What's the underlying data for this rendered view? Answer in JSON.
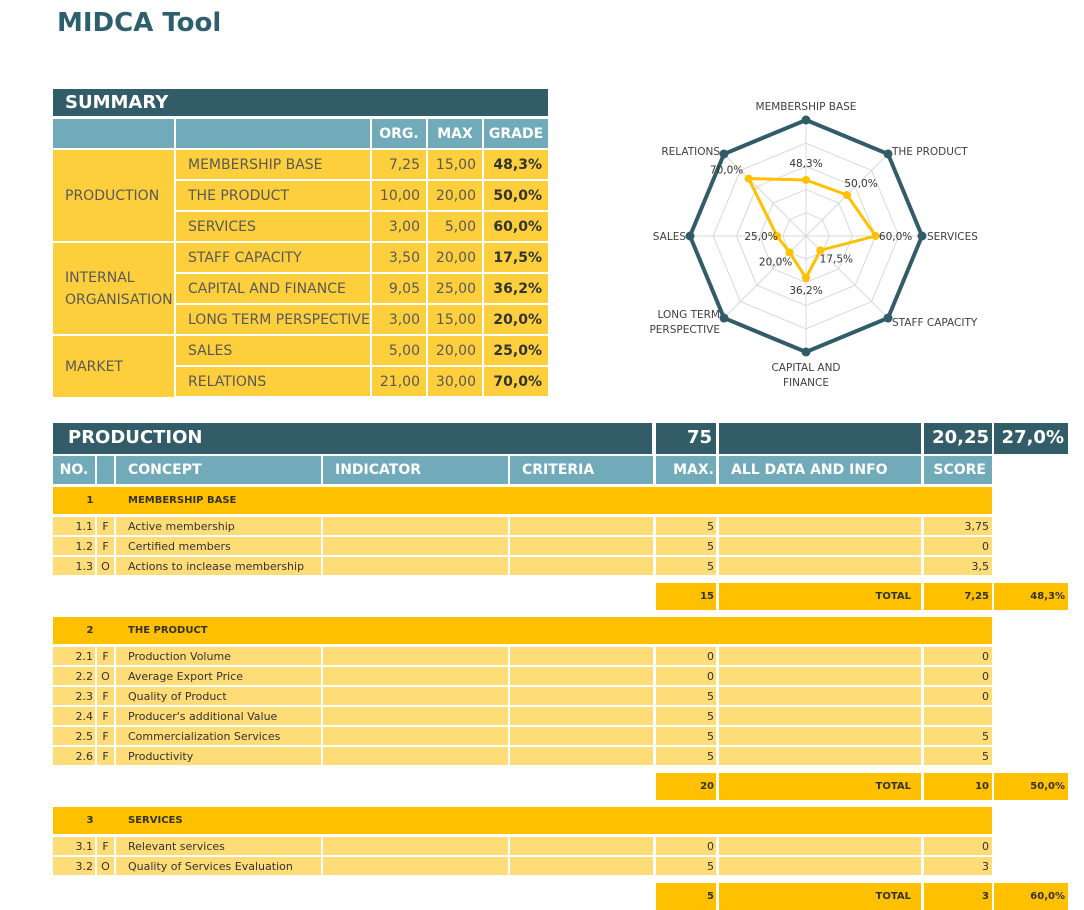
{
  "app_title": "MIDCA Tool",
  "summary": {
    "title": "SUMMARY",
    "col_headers": [
      "ORG.",
      "MAX",
      "GRADE"
    ],
    "groups": [
      "PRODUCTION",
      "INTERNAL ORGANISATION",
      "MARKET"
    ],
    "rows": [
      {
        "name": "MEMBERSHIP BASE",
        "org": "7,25",
        "max": "15,00",
        "grade": "48,3%"
      },
      {
        "name": "THE PRODUCT",
        "org": "10,00",
        "max": "20,00",
        "grade": "50,0%"
      },
      {
        "name": "SERVICES",
        "org": "3,00",
        "max": "5,00",
        "grade": "60,0%"
      },
      {
        "name": "STAFF CAPACITY",
        "org": "3,50",
        "max": "20,00",
        "grade": "17,5%"
      },
      {
        "name": "CAPITAL AND FINANCE",
        "org": "9,05",
        "max": "25,00",
        "grade": "36,2%"
      },
      {
        "name": "LONG TERM PERSPECTIVE",
        "org": "3,00",
        "max": "15,00",
        "grade": "20,0%"
      },
      {
        "name": "SALES",
        "org": "5,00",
        "max": "20,00",
        "grade": "25,0%"
      },
      {
        "name": "RELATIONS",
        "org": "21,00",
        "max": "30,00",
        "grade": "70,0%"
      }
    ]
  },
  "chart_data": {
    "type": "radar",
    "categories": [
      "MEMBERSHIP BASE",
      "THE PRODUCT",
      "SERVICES",
      "STAFF CAPACITY",
      "CAPITAL AND FINANCE",
      "LONG TERM PERSPECTIVE",
      "SALES",
      "RELATIONS"
    ],
    "category_lines": [
      [
        "MEMBERSHIP BASE"
      ],
      [
        "THE PRODUCT"
      ],
      [
        "SERVICES"
      ],
      [
        "STAFF CAPACITY"
      ],
      [
        "CAPITAL AND",
        "FINANCE"
      ],
      [
        "LONG TERM",
        "PERSPECTIVE"
      ],
      [
        "SALES"
      ],
      [
        "RELATIONS"
      ]
    ],
    "series": [
      {
        "values": [
          48.3,
          50.0,
          60.0,
          17.5,
          36.2,
          20.0,
          25.0,
          70.0
        ],
        "color": "#ffc000"
      },
      {
        "values": [
          100,
          100,
          100,
          100,
          100,
          100,
          100,
          100
        ],
        "color": "#325d68"
      }
    ],
    "data_labels": [
      "48,3%",
      "50,0%",
      "60,0%",
      "17,5%",
      "36,2%",
      "20,0%",
      "25,0%",
      "70,0%"
    ],
    "rlim": [
      0,
      100
    ],
    "grid": true
  },
  "production": {
    "title": "PRODUCTION",
    "max_total": "75",
    "score_total": "20,25",
    "grade_total": "27,0%",
    "col_headers": {
      "no": "NO.",
      "concept": "CONCEPT",
      "indicator": "INDICATOR",
      "criteria": "CRITERIA",
      "max": "MAX.",
      "info": "ALL DATA AND INFO",
      "score": "SCORE"
    },
    "total_label": "TOTAL",
    "sections": [
      {
        "no": "1",
        "name": "MEMBERSHIP BASE",
        "items": [
          {
            "no": "1.1",
            "t": "F",
            "concept": "Active membership",
            "max": "5",
            "score": "3,75"
          },
          {
            "no": "1.2",
            "t": "F",
            "concept": "Certified members",
            "max": "5",
            "score": "0"
          },
          {
            "no": "1.3",
            "t": "O",
            "concept": "Actions to inclease membership",
            "max": "5",
            "score": "3,5"
          }
        ],
        "total_max": "15",
        "total_score": "7,25",
        "total_pct": "48,3%"
      },
      {
        "no": "2",
        "name": "THE PRODUCT",
        "items": [
          {
            "no": "2.1",
            "t": "F",
            "concept": "Production Volume",
            "max": "0",
            "score": "0"
          },
          {
            "no": "2.2",
            "t": "O",
            "concept": "Average Export Price",
            "max": "0",
            "score": "0"
          },
          {
            "no": "2.3",
            "t": "F",
            "concept": "Quality of Product",
            "max": "5",
            "score": "0"
          },
          {
            "no": "2.4",
            "t": "F",
            "concept": "Producer's additional Value",
            "max": "5",
            "score": ""
          },
          {
            "no": "2.5",
            "t": "F",
            "concept": "Commercialization Services",
            "max": "5",
            "score": "5"
          },
          {
            "no": "2.6",
            "t": "F",
            "concept": "Productivity",
            "max": "5",
            "score": "5"
          }
        ],
        "total_max": "20",
        "total_score": "10",
        "total_pct": "50,0%"
      },
      {
        "no": "3",
        "name": "SERVICES",
        "items": [
          {
            "no": "3.1",
            "t": "F",
            "concept": "Relevant services",
            "max": "0",
            "score": "0"
          },
          {
            "no": "3.2",
            "t": "O",
            "concept": "Quality of Services Evaluation",
            "max": "5",
            "score": "3"
          }
        ],
        "total_max": "5",
        "total_score": "3",
        "total_pct": "60,0%"
      }
    ]
  }
}
